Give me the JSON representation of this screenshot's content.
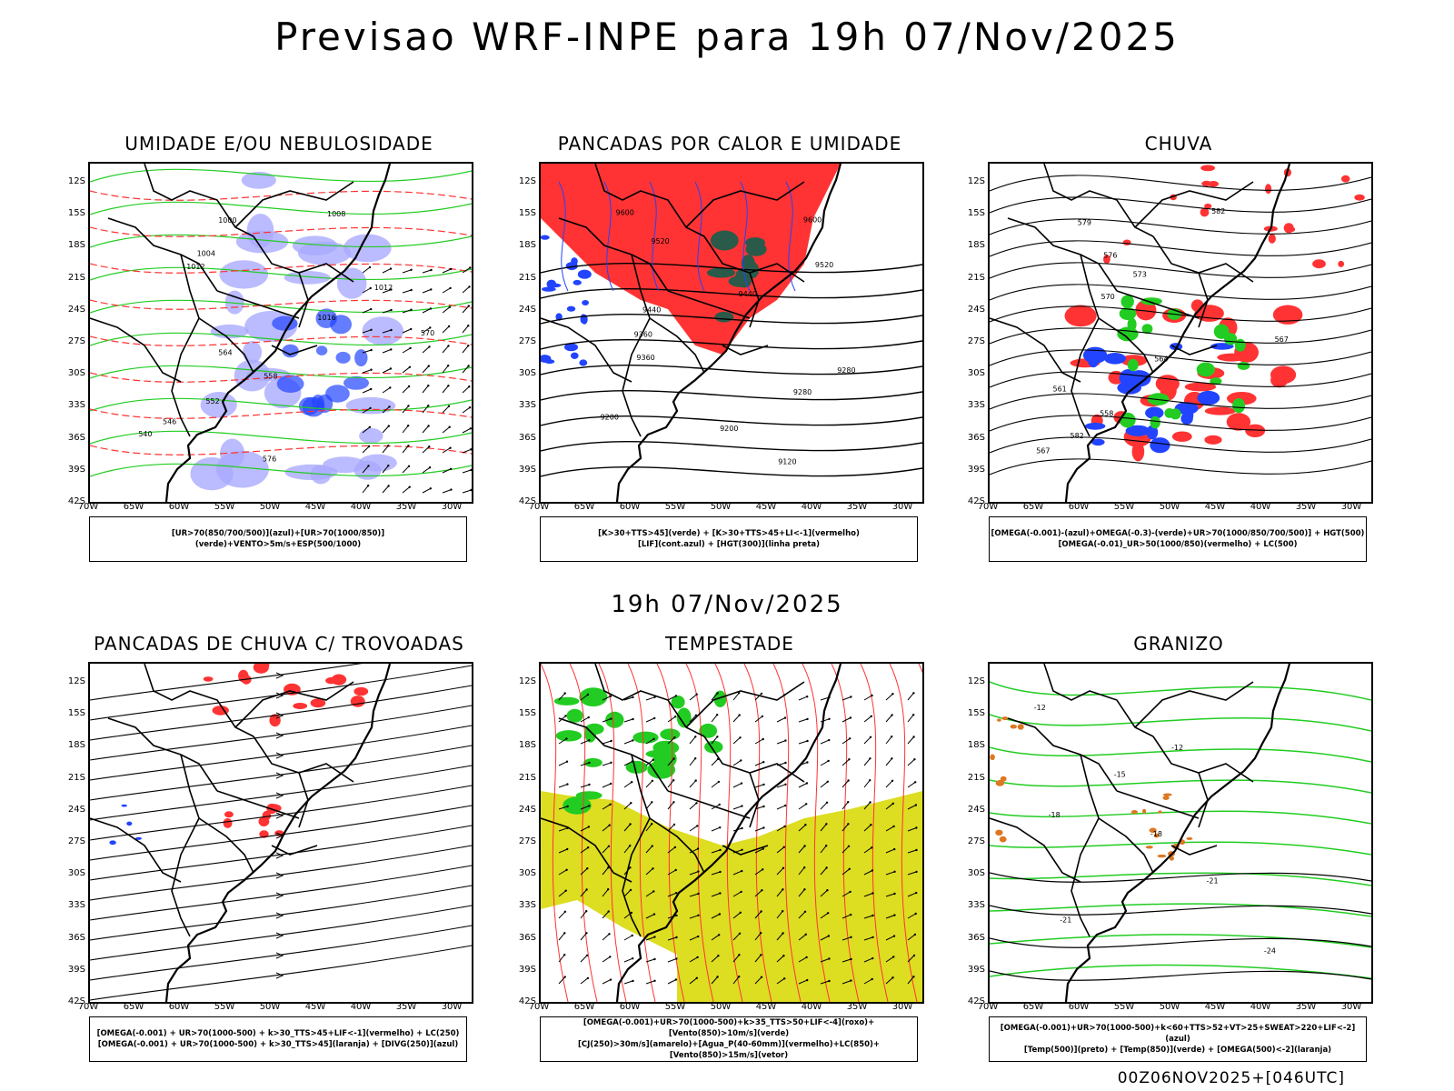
{
  "header": {
    "title": "Previsao WRF-INPE  para 19h 07/Nov/2025"
  },
  "middle": {
    "title": "19h 07/Nov/2025"
  },
  "footer": {
    "text": "00Z06NOV2025+[046UTC]"
  },
  "axes": {
    "lat_labels": [
      "12S",
      "15S",
      "18S",
      "21S",
      "24S",
      "27S",
      "30S",
      "33S",
      "36S",
      "39S",
      "42S"
    ],
    "lon_labels": [
      "70W",
      "65W",
      "60W",
      "55W",
      "50W",
      "45W",
      "40W",
      "35W",
      "30W"
    ]
  },
  "colors": {
    "red": "#ff3333",
    "green": "#22cc22",
    "blue": "#2244ff",
    "lavender": "#aaaaff",
    "yellow": "#dddd22",
    "darkgreen": "#2a5a4a",
    "orange": "#dd7722"
  },
  "panels": [
    {
      "title": "UMIDADE E/OU NEBULOSIDADE",
      "legend": [
        "[UR>70(850/700/500)](azul)+[UR>70(1000/850)](verde)+VENTO>5m/s+ESP(500/1000)"
      ],
      "contour_labels": [
        "1008",
        "1000",
        "1004",
        "1012",
        "1012",
        "1016",
        "570",
        "564",
        "558",
        "552",
        "546",
        "540",
        "576"
      ]
    },
    {
      "title": "PANCADAS POR CALOR E UMIDADE",
      "legend": [
        "[K>30+TTS>45](verde) + [K>30+TTS>45+LI<-1](vermelho)",
        "[LIF](cont.azul) + [HGT(300)](linha preta)"
      ],
      "contour_labels": [
        "9600",
        "9600",
        "9520",
        "9520",
        "9440",
        "9440",
        "9360",
        "9360",
        "9280",
        "9280",
        "9200",
        "9200",
        "9120"
      ]
    },
    {
      "title": "CHUVA",
      "legend": [
        "[OMEGA(-0.001)-(azul)+OMEGA(-0.3)-(verde)+UR>70(1000/850/700/500)] + HGT(500)",
        "[OMEGA(-0.01)_UR>50(1000/850)(vermelho) + LC(500)"
      ],
      "contour_labels": [
        "582",
        "579",
        "576",
        "573",
        "570",
        "567",
        "564",
        "561",
        "558",
        "582",
        "567"
      ]
    },
    {
      "title": "PANCADAS DE CHUVA C/ TROVOADAS",
      "legend": [
        "[OMEGA(-0.001) + UR>70(1000-500) + k>30_TTS>45+LIF<-1](vermelho) + LC(250)",
        "[OMEGA(-0.001) + UR>70(1000-500) + k>30_TTS>45](laranja) + [DIVG(250)](azul)"
      ],
      "contour_labels": []
    },
    {
      "title": "TEMPESTADE",
      "legend": [
        "[OMEGA(-0.001)+UR>70(1000-500)+k>35_TTS>50+LIF<-4](roxo)+[Vento(850)>10m/s](verde)",
        "[CJ(250)>30m/s](amarelo)+[Agua_P(40-60mm)](vermelho)+LC(850)+[Vento(850)>15m/s](vetor)"
      ],
      "contour_labels": []
    },
    {
      "title": "GRANIZO",
      "legend": [
        "[OMEGA(-0.001)+UR>70(1000-500)+k<60+TTS>52+VT>25+SWEAT>220+LIF<-2](azul)",
        "[Temp(500)](preto) + [Temp(850)](verde) + [OMEGA(500)<-2](laranja)"
      ],
      "contour_labels": [
        "-12",
        "-12",
        "-15",
        "-18",
        "-18",
        "-21",
        "-21",
        "-24"
      ]
    }
  ]
}
